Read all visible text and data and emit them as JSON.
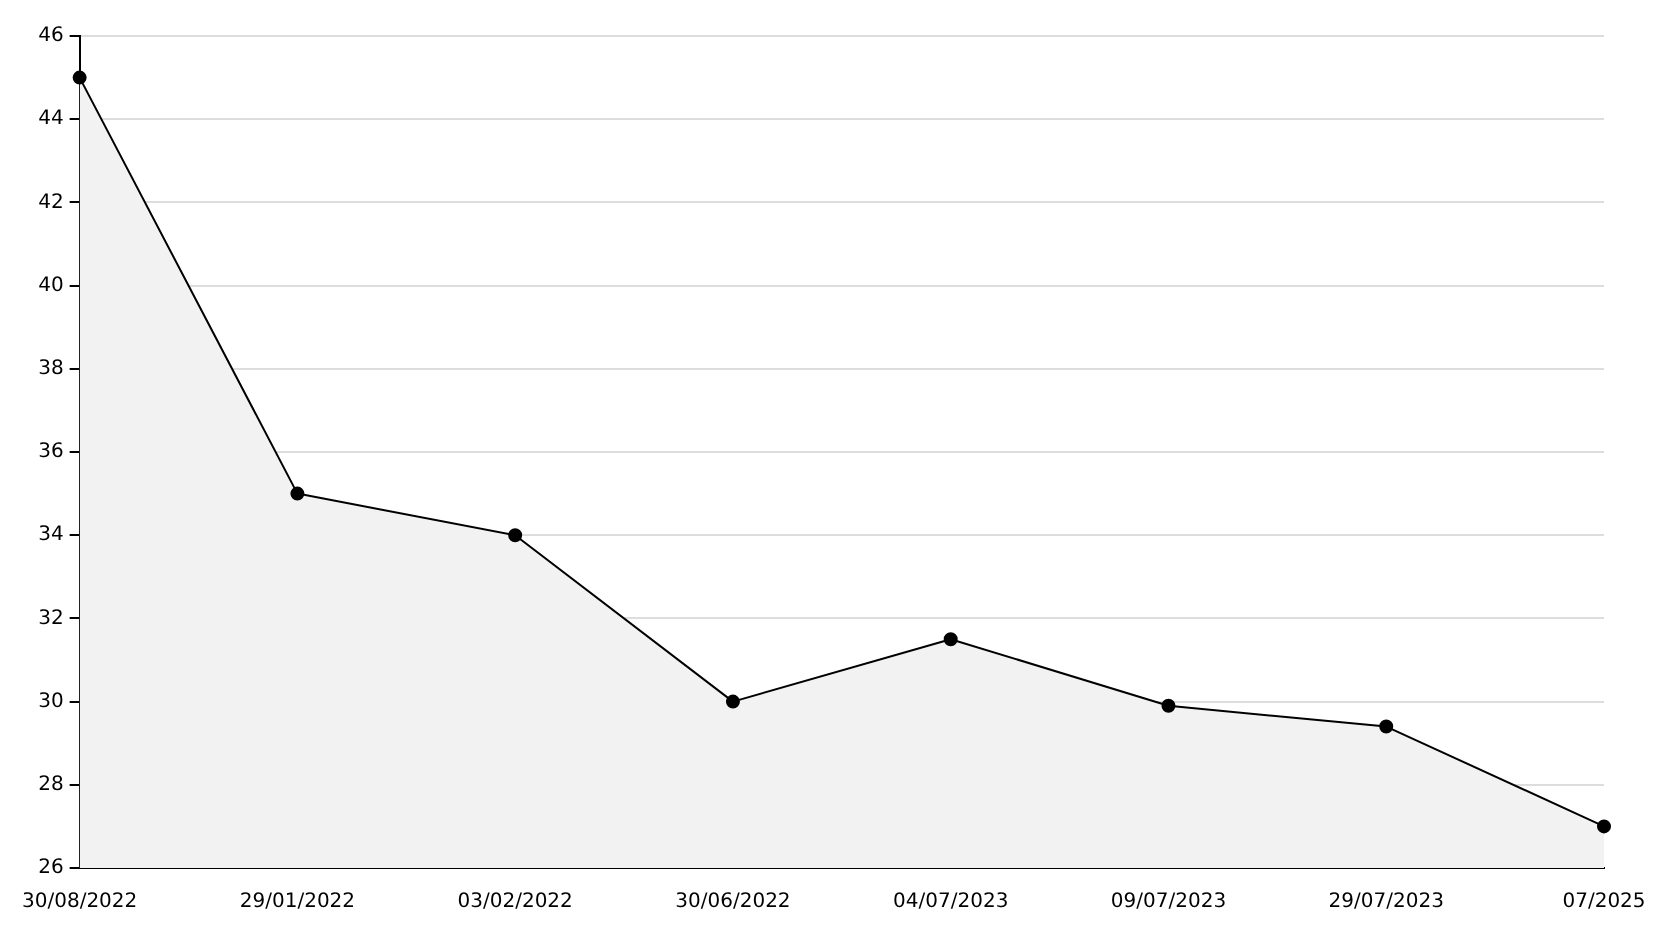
{
  "chart_data": {
    "type": "area",
    "categories": [
      "30/08/2022",
      "29/01/2022",
      "03/02/2022",
      "30/06/2022",
      "04/07/2023",
      "09/07/2023",
      "29/07/2023",
      "07/2025"
    ],
    "series": [
      {
        "color": "#000000",
        "values": [
          45,
          35,
          34,
          30,
          31.5,
          29.9,
          29.4,
          27
        ]
      }
    ],
    "ylim": [
      26,
      46
    ],
    "yticks": [
      26,
      28,
      30,
      32,
      34,
      36,
      38,
      40,
      42,
      44,
      46
    ],
    "grid": "y",
    "legend": false,
    "marker": "circle",
    "line_style": "solid"
  }
}
